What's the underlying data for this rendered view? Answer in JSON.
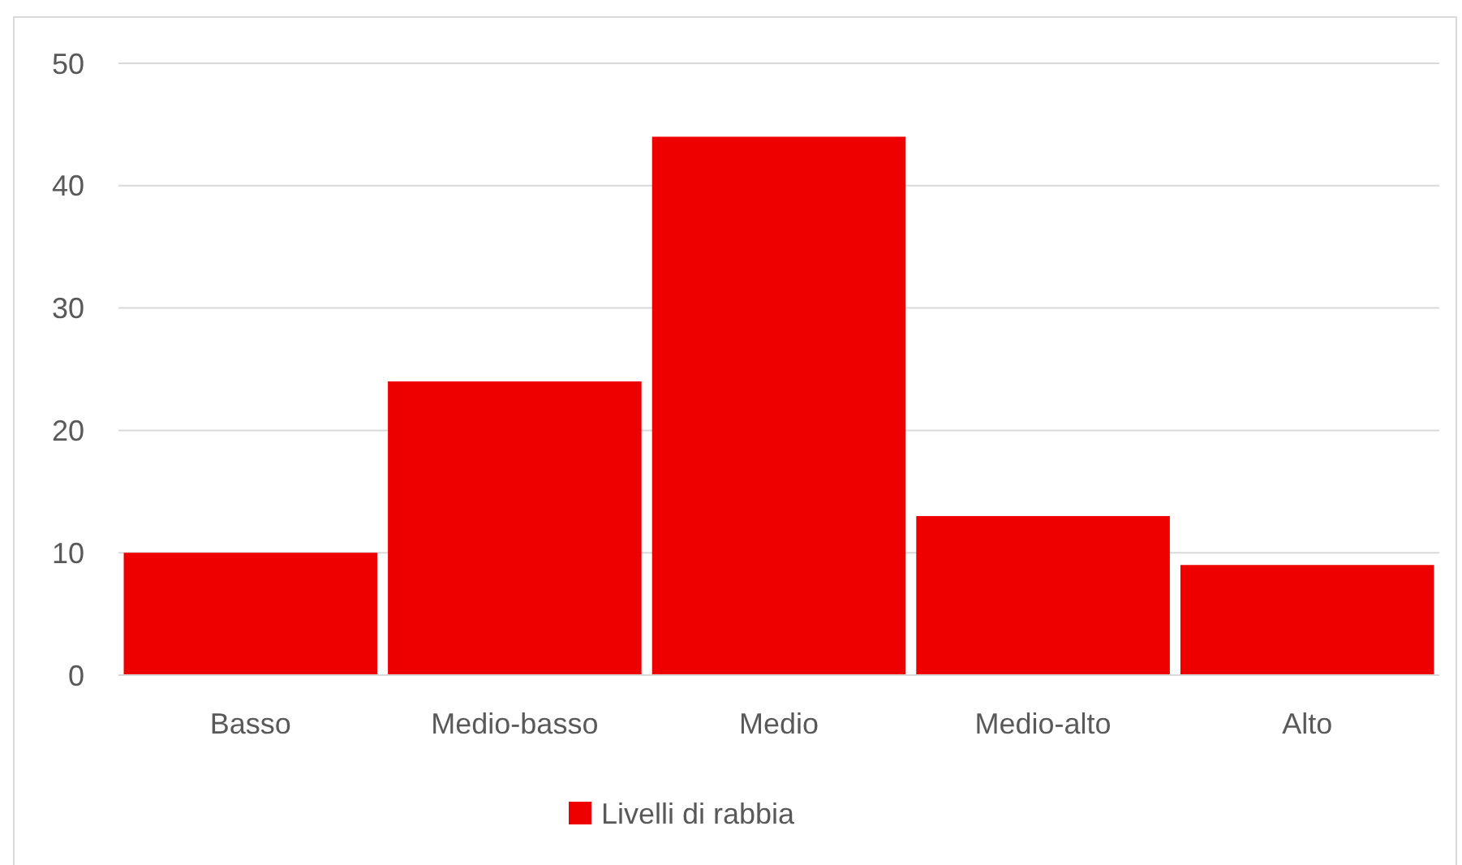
{
  "chart_data": {
    "type": "bar",
    "categories": [
      "Basso",
      "Medio-basso",
      "Medio",
      "Medio-alto",
      "Alto"
    ],
    "series": [
      {
        "name": "Livelli di rabbia",
        "color": "#ee0000",
        "values": [
          10,
          24,
          44,
          13,
          9
        ]
      }
    ],
    "ylim": [
      0,
      50
    ],
    "yticks": [
      0,
      10,
      20,
      30,
      40,
      50
    ],
    "grid": "y",
    "legend": "bottom"
  }
}
